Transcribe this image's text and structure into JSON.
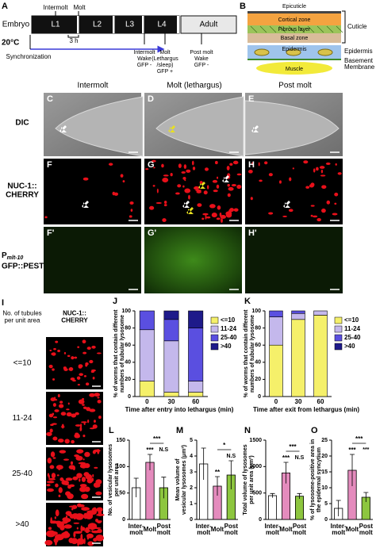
{
  "panel_a": {
    "letter": "A",
    "stages": [
      "Embryo",
      "L1",
      "L2",
      "L3",
      "L4",
      "Adult"
    ],
    "temperature": "20°C",
    "intermolt": "Intermolt",
    "molt": "Molt",
    "duration": "3 h",
    "synchronization": "Synchronization",
    "states": [
      "Intermolt\nWake\nGFP -",
      "Molt\n(Lethargus\n/sleep)\nGFP +",
      "Post molt\nWake\nGFP -"
    ]
  },
  "panel_b": {
    "letter": "B",
    "layers": [
      "Epicuticle",
      "Cortical zone",
      "Fibrous layer",
      "Basal zone",
      "Epidermis"
    ],
    "muscle": "Muscle",
    "groups": [
      "Cuticle",
      "Epidermis",
      "Basement\nMembrane"
    ]
  },
  "images": {
    "columns": [
      "Intermolt",
      "Molt (lethargus)",
      "Post molt"
    ],
    "rows": [
      "DIC",
      "NUC-1::\nCHERRY"
    ],
    "reporter": {
      "prefix": "P",
      "subscript": "mlt-10",
      "line2": "GFP::PEST"
    },
    "letters": [
      "C",
      "D",
      "E",
      "F",
      "G",
      "H",
      "F'",
      "G'",
      "H'"
    ]
  },
  "panel_i": {
    "letter": "I",
    "header": "No. of tubules\nper unit area",
    "channel": "NUC-1::\nCHERRY",
    "classes": [
      "<=10",
      "11-24",
      "25-40",
      ">40"
    ]
  },
  "chart_data": [
    {
      "type": "stacked_bar",
      "letter": "J",
      "categories": [
        "0",
        "30",
        "60"
      ],
      "xlabel": "Time after entry into lethargus (min)",
      "ylabel": "% of worms that contain different\nnumbers of tubular lysosome",
      "ylim": [
        0,
        100
      ],
      "yticks": [
        0,
        20,
        40,
        60,
        80,
        100
      ],
      "series": [
        {
          "name": "<=10",
          "color": "#f5f06a",
          "values": [
            18,
            5,
            5
          ]
        },
        {
          "name": "11-24",
          "color": "#c4b8ec",
          "values": [
            60,
            60,
            13
          ]
        },
        {
          "name": "25-40",
          "color": "#5a4fe0",
          "values": [
            22,
            25,
            62
          ]
        },
        {
          "name": ">40",
          "color": "#1e1a8a",
          "values": [
            0,
            10,
            20
          ]
        }
      ]
    },
    {
      "type": "stacked_bar",
      "letter": "K",
      "categories": [
        "0",
        "30",
        "60"
      ],
      "xlabel": "Time after exit from lethargus (min)",
      "ylabel": "% of worms that contain different\nnumbers of tubular lysosome",
      "ylim": [
        0,
        100
      ],
      "yticks": [
        0,
        20,
        40,
        60,
        80,
        100
      ],
      "series": [
        {
          "name": "<=10",
          "color": "#f5f06a",
          "values": [
            60,
            90,
            95
          ]
        },
        {
          "name": "11-24",
          "color": "#c4b8ec",
          "values": [
            33,
            7,
            5
          ]
        },
        {
          "name": "25-40",
          "color": "#5a4fe0",
          "values": [
            7,
            3,
            0
          ]
        },
        {
          "name": ">40",
          "color": "#1e1a8a",
          "values": [
            0,
            0,
            0
          ]
        }
      ]
    },
    {
      "type": "bar",
      "letter": "L",
      "categories": [
        "Inter-\nmolt",
        "Molt",
        "Post\nmolt"
      ],
      "values": [
        60,
        108,
        60
      ],
      "errors": [
        18,
        15,
        20
      ],
      "colors": [
        "#ffffff",
        "#e48bbd",
        "#8dc63f"
      ],
      "ylabel": "No. of vesicular lysosomes\nper unit area",
      "ylim": [
        0,
        150
      ],
      "yticks": [
        0,
        50,
        100,
        150
      ],
      "annotations": [
        "***",
        "***",
        "N.S"
      ]
    },
    {
      "type": "bar",
      "letter": "M",
      "categories": [
        "Inter-\nmolt",
        "Molt",
        "Post\nmolt"
      ],
      "values": [
        3.5,
        2.1,
        2.8
      ],
      "errors": [
        1.0,
        0.6,
        0.9
      ],
      "colors": [
        "#ffffff",
        "#e48bbd",
        "#8dc63f"
      ],
      "ylabel": "Mean volume of\nvesicular lysosomes (μm³)",
      "ylim": [
        0,
        5
      ],
      "yticks": [
        0,
        1,
        2,
        3,
        4,
        5
      ],
      "annotations": [
        "**",
        "*",
        "N.S"
      ]
    },
    {
      "type": "bar",
      "letter": "N",
      "categories": [
        "Inter-\nmolt",
        "Molt",
        "Post\nmolt"
      ],
      "values": [
        450,
        880,
        440
      ],
      "errors": [
        40,
        200,
        50
      ],
      "colors": [
        "#ffffff",
        "#e48bbd",
        "#8dc63f"
      ],
      "ylabel": "Total volume of lysosomes\nper unit area (μm³)",
      "ylim": [
        0,
        1500
      ],
      "yticks": [
        0,
        500,
        1000,
        1500
      ],
      "annotations": [
        "***",
        "***",
        "N.S"
      ]
    },
    {
      "type": "bar",
      "letter": "O",
      "categories": [
        "Inter-\nmolt",
        "Molt",
        "Post\nmolt"
      ],
      "values": [
        3.5,
        15.5,
        7
      ],
      "errors": [
        2.5,
        5,
        1.5
      ],
      "colors": [
        "#ffffff",
        "#e48bbd",
        "#8dc63f"
      ],
      "ylabel": "% of lysosome-positive area in\nthe epidermal syncytium",
      "ylim": [
        0,
        25
      ],
      "yticks": [
        0,
        5,
        10,
        15,
        20,
        25
      ],
      "annotations": [
        "***",
        "***",
        "***"
      ]
    }
  ]
}
